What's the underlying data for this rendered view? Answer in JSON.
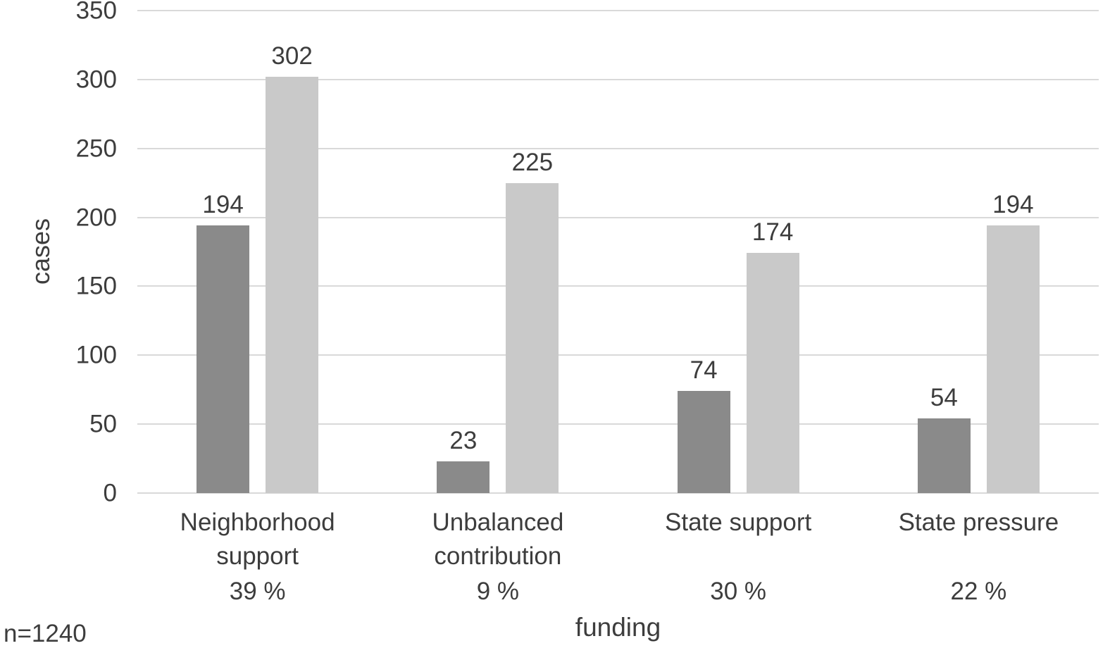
{
  "chart_data": {
    "type": "bar",
    "title": "",
    "categories": [
      "Neighborhood support",
      "Unbalanced contribution",
      "State support",
      "State pressure"
    ],
    "category_percent_labels": [
      "39 %",
      "9 %",
      "30 %",
      "22 %"
    ],
    "series": [
      {
        "name": "dark-gray",
        "color": "#8a8a8a",
        "values": [
          194,
          23,
          74,
          54
        ]
      },
      {
        "name": "light-gray",
        "color": "#c9c9c9",
        "values": [
          302,
          225,
          174,
          194
        ]
      }
    ],
    "xlabel": "funding",
    "ylabel": "cases",
    "ylim": [
      0,
      350
    ],
    "yticks": [
      0,
      50,
      100,
      150,
      200,
      250,
      300,
      350
    ],
    "grid": true,
    "legend_position": "none",
    "bar_value_labels": true,
    "annotation": "n=1240",
    "colors": {
      "background": "#ffffff",
      "gridline": "#d9d9d9",
      "text": "#3d3d3d"
    }
  }
}
